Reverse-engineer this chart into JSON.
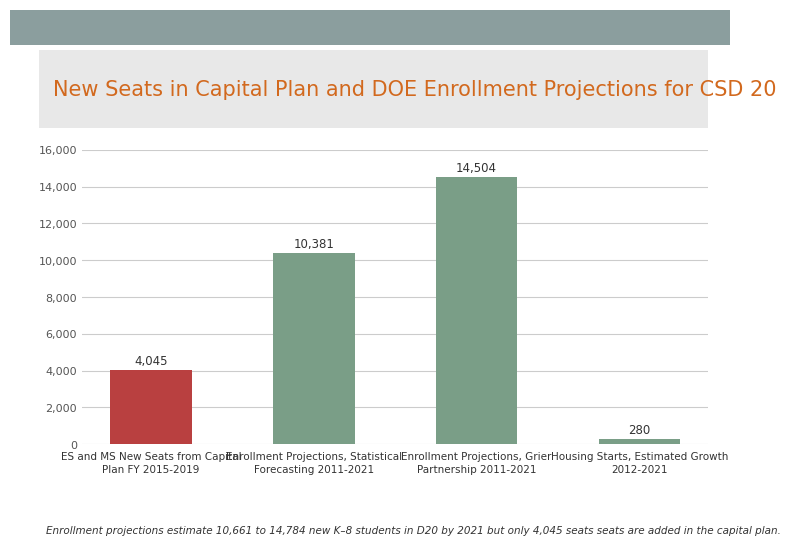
{
  "title": "New Seats in Capital Plan and DOE Enrollment Projections for CSD 20",
  "title_color": "#D2691E",
  "title_fontsize": 15,
  "categories": [
    "ES and MS New Seats from Capital\nPlan FY 2015-2019",
    "Enrollment Projections, Statistical\nForecasting 2011-2021",
    "Enrollment Projections, Grier\nPartnership 2011-2021",
    "Housing Starts, Estimated Growth\n2012-2021"
  ],
  "values": [
    4045,
    10381,
    14504,
    280
  ],
  "bar_colors": [
    "#B94040",
    "#7A9E87",
    "#7A9E87",
    "#7A9E87"
  ],
  "ylim": [
    0,
    16000
  ],
  "yticks": [
    0,
    2000,
    4000,
    6000,
    8000,
    10000,
    12000,
    14000,
    16000
  ],
  "value_labels": [
    "4,045",
    "10,381",
    "14,504",
    "280"
  ],
  "footer_text": "Enrollment projections estimate 10,661 to 14,784 new K–8 students in D20 by 2021 but only 4,045 seats seats are added in the capital plan.",
  "background_outer": "#8B9E9E",
  "background_chart": "#FFFFFF",
  "title_panel_color": "#E8E8E8",
  "grid_color": "#CCCCCC"
}
